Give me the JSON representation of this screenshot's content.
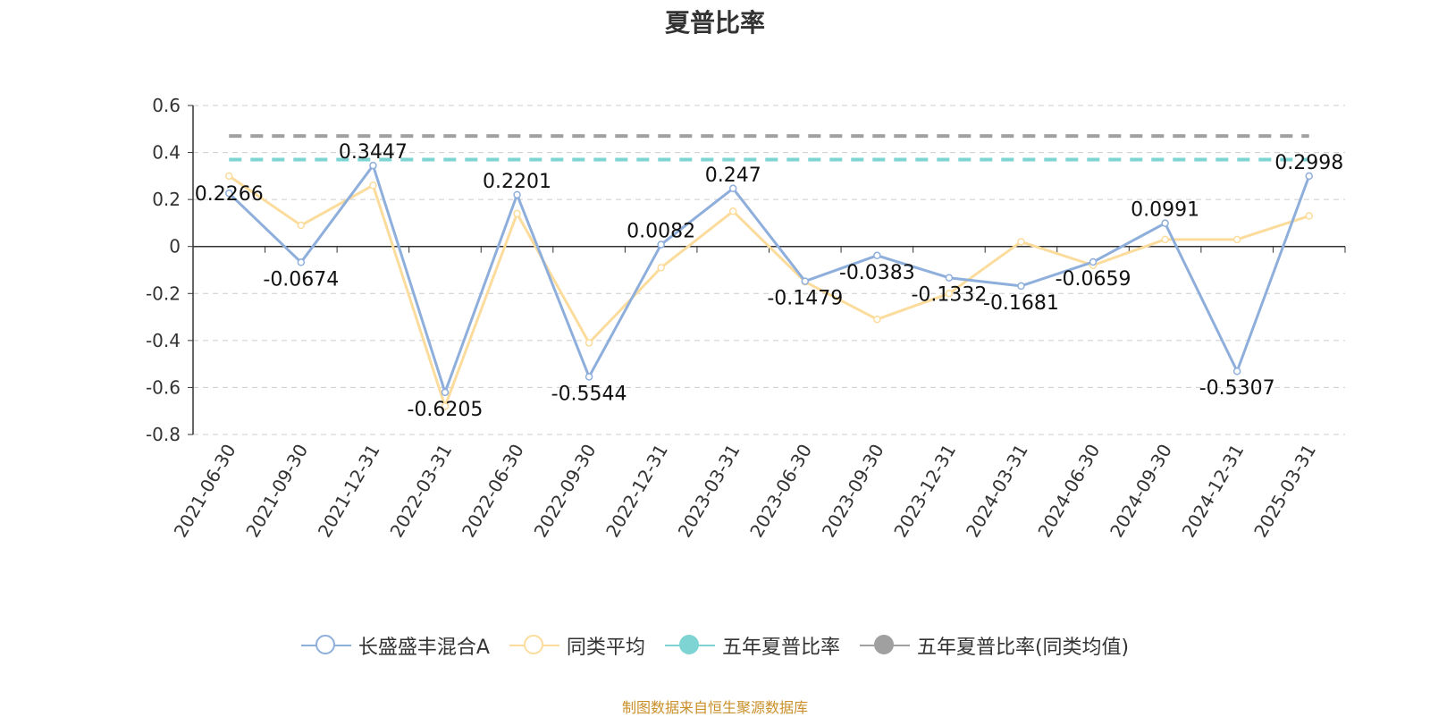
{
  "chart_data": {
    "type": "line",
    "title": "夏普比率",
    "categories": [
      "2021-06-30",
      "2021-09-30",
      "2021-12-31",
      "2022-03-31",
      "2022-06-30",
      "2022-09-30",
      "2022-12-31",
      "2023-03-31",
      "2023-06-30",
      "2023-09-30",
      "2023-12-31",
      "2024-03-31",
      "2024-06-30",
      "2024-09-30",
      "2024-12-31",
      "2025-03-31"
    ],
    "y_ticks": [
      "0.6",
      "0.4",
      "0.2",
      "0",
      "-0.2",
      "-0.4",
      "-0.6",
      "-0.8"
    ],
    "ylim": [
      -0.8,
      0.6
    ],
    "grid": true,
    "legend_position": "bottom",
    "series": [
      {
        "name": "长盛盛丰混合A",
        "color": "#8eaedb",
        "values": [
          0.2266,
          -0.0674,
          0.3447,
          -0.6205,
          0.2201,
          -0.5544,
          0.0082,
          0.247,
          -0.1479,
          -0.0383,
          -0.1332,
          -0.1681,
          -0.0659,
          0.0991,
          -0.5307,
          0.2998
        ],
        "labels": [
          "0.2266",
          "-0.0674",
          "0.3447",
          "-0.6205",
          "0.2201",
          "-0.5544",
          "0.0082",
          "0.247",
          "-0.1479",
          "-0.0383",
          "-0.1332",
          "-0.1681",
          "-0.0659",
          "0.0991",
          "-0.5307",
          "0.2998"
        ]
      },
      {
        "name": "同类平均",
        "color": "#fbdc9c",
        "values": [
          0.3,
          0.09,
          0.26,
          -0.68,
          0.14,
          -0.41,
          -0.09,
          0.15,
          -0.15,
          -0.31,
          -0.2,
          0.02,
          -0.08,
          0.03,
          0.03,
          0.13
        ]
      },
      {
        "name": "五年夏普比率",
        "color": "#7ed3d3",
        "constant": 0.37
      },
      {
        "name": "五年夏普比率(同类均值)",
        "color": "#a0a0a0",
        "constant": 0.47
      }
    ]
  },
  "source_text": "制图数据来自恒生聚源数据库"
}
